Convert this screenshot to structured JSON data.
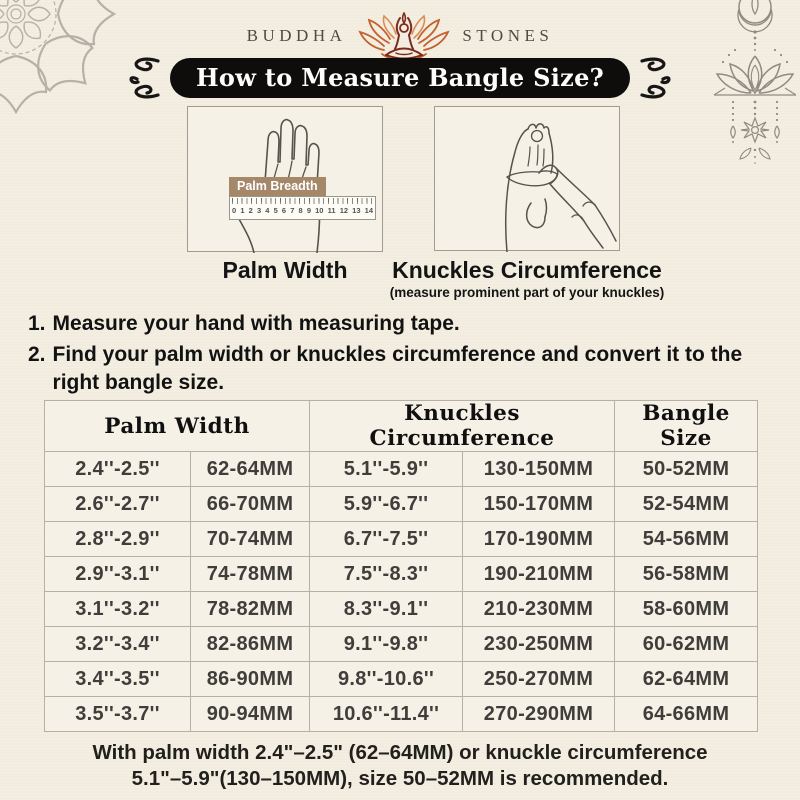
{
  "brand": {
    "name_left": "BUDDHA",
    "name_right": "STONES"
  },
  "banner": {
    "title": "How to Measure Bangle Size?"
  },
  "diagrams": {
    "palm": {
      "caption": "Palm Width",
      "tag": "Palm Breadth",
      "ruler_numbers": [
        "0",
        "1",
        "2",
        "3",
        "4",
        "5",
        "6",
        "7",
        "8",
        "9",
        "10",
        "11",
        "12",
        "13",
        "14"
      ]
    },
    "knuckles": {
      "caption": "Knuckles Circumference",
      "subcaption": "(measure prominent part of your knuckles)"
    }
  },
  "instructions": [
    {
      "number": "1.",
      "text": "Measure your hand with measuring tape."
    },
    {
      "number": "2.",
      "text": "Find your palm width or knuckles circumference and convert it to the right bangle size."
    }
  ],
  "table": {
    "headers": [
      "Palm Width",
      "Knuckles Circumference",
      "Bangle Size"
    ],
    "rows": [
      [
        "2.4''-2.5''",
        "62-64MM",
        "5.1''-5.9''",
        "130-150MM",
        "50-52MM"
      ],
      [
        "2.6''-2.7''",
        "66-70MM",
        "5.9''-6.7''",
        "150-170MM",
        "52-54MM"
      ],
      [
        "2.8''-2.9''",
        "70-74MM",
        "6.7''-7.5''",
        "170-190MM",
        "54-56MM"
      ],
      [
        "2.9''-3.1''",
        "74-78MM",
        "7.5''-8.3''",
        "190-210MM",
        "56-58MM"
      ],
      [
        "3.1''-3.2''",
        "78-82MM",
        "8.3''-9.1''",
        "210-230MM",
        "58-60MM"
      ],
      [
        "3.2''-3.4''",
        "82-86MM",
        "9.1''-9.8''",
        "230-250MM",
        "60-62MM"
      ],
      [
        "3.4''-3.5''",
        "86-90MM",
        "9.8''-10.6''",
        "250-270MM",
        "62-64MM"
      ],
      [
        "3.5''-3.7''",
        "90-94MM",
        "10.6''-11.4''",
        "270-290MM",
        "64-66MM"
      ]
    ]
  },
  "footer": {
    "line1": "With palm width 2.4\"–2.5\" (62–64MM) or knuckle circumference",
    "line2": "5.1\"–5.9\"(130–150MM), size 50–52MM is recommended."
  },
  "colors": {
    "bg": "#f2ecdf",
    "box_bg": "#f6f1e6",
    "banner_bg": "#0e0d0b",
    "banner_text": "#fdfdfb",
    "brand_text": "#4e4a45",
    "accent_orange": "#c2622f",
    "accent_maroon": "#7c2b1b",
    "tag_bg": "#a5876a",
    "table_border": "#b5b1a7",
    "cell_text": "#3f3e3b",
    "text": "#141414",
    "ornament": "#a09c93",
    "line_art": "#56534c"
  }
}
